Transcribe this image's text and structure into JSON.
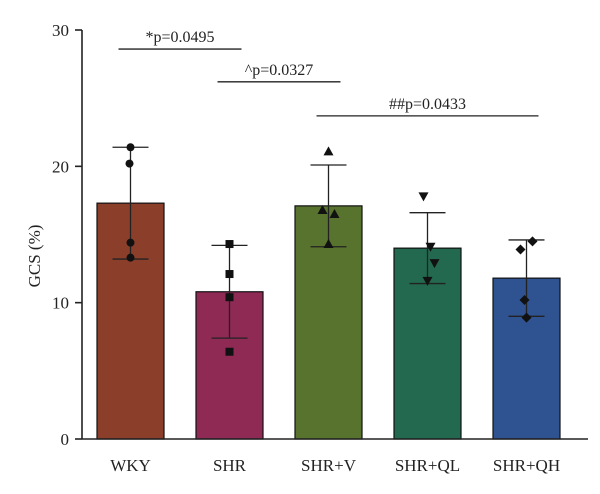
{
  "chart_data": {
    "type": "bar",
    "ylabel": "GCS (%)",
    "ylim": [
      0,
      30
    ],
    "yticks": [
      0,
      10,
      20,
      30
    ],
    "categories": [
      "WKY",
      "SHR",
      "SHR+V",
      "SHR+QL",
      "SHR+QH"
    ],
    "means": [
      17.3,
      10.8,
      17.1,
      14.0,
      11.8
    ],
    "sd": [
      4.1,
      3.4,
      3.0,
      2.6,
      2.8
    ],
    "colors": [
      "#8b3f2b",
      "#8f2a55",
      "#58732d",
      "#23694f",
      "#2f5290"
    ],
    "markers": [
      "circle",
      "square",
      "triangle-up",
      "triangle-down",
      "diamond"
    ],
    "points": [
      [
        21.4,
        20.2,
        14.4,
        13.3
      ],
      [
        14.3,
        12.1,
        10.4,
        6.4
      ],
      [
        21.1,
        16.8,
        16.5,
        14.3
      ],
      [
        17.8,
        14.1,
        12.9,
        11.6
      ],
      [
        14.5,
        13.9,
        10.2,
        8.9
      ]
    ],
    "annotations": [
      {
        "text": "*p=0.0495",
        "from": 0,
        "to": 1,
        "y": 28.6
      },
      {
        "text": "^p=0.0327",
        "from": 1,
        "to": 2,
        "y": 26.2
      },
      {
        "text": "##p=0.0433",
        "from": 2,
        "to": 4,
        "y": 23.7
      }
    ]
  }
}
